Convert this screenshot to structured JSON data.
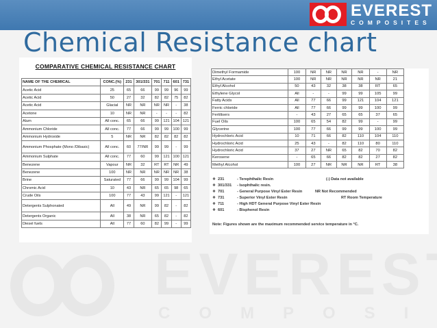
{
  "title": "Chemical Resistance chart",
  "brand": {
    "name": "EVEREST",
    "tagline": "COMPOSITES"
  },
  "left_table": {
    "title": "COMPARATIVE CHEMICAL RESISTANCE CHART",
    "headers": [
      "NAME OF THE CHEMICAL",
      "CONC.(%)",
      "231",
      "301/331",
      "701",
      "711",
      "601",
      "731"
    ],
    "rows": [
      [
        "Acetic Acid",
        "25",
        "65",
        "66",
        "99",
        "99",
        "96",
        "99"
      ],
      [
        "Acetic Acid",
        "50",
        "27",
        "32",
        "82",
        "82",
        "75",
        "82"
      ],
      [
        "Acetic Acid",
        "Glacial",
        "NR",
        "NR",
        "NR",
        "NR",
        "-",
        "38"
      ],
      [
        "Acetone",
        "10",
        "NR",
        "NR",
        "-",
        "-",
        "-",
        "82"
      ],
      [
        "Alum",
        "All conc.",
        "65",
        "66",
        "99",
        "121",
        "104",
        "121"
      ],
      [
        "Ammonium Chloride",
        "All conc.",
        "77",
        "66",
        "99",
        "99",
        "100",
        "99"
      ],
      [
        "Ammonium Hydroxide",
        "5",
        "NR",
        "NR",
        "82",
        "82",
        "82",
        "82"
      ],
      [
        "Ammonium Phosphate (Mono /Dibasic)",
        "All conc.",
        "60",
        "77/NR",
        "99",
        "99",
        "-",
        "99"
      ],
      [
        "Ammonium Sulphate",
        "All conc.",
        "77",
        "60",
        "99",
        "121",
        "100",
        "121"
      ],
      [
        "Benezene",
        "Vapour",
        "NR",
        "32",
        "RT",
        "RT",
        "NR",
        "49"
      ],
      [
        "Benezene",
        "100",
        "NR",
        "NR",
        "NR",
        "NR",
        "NR",
        "38"
      ],
      [
        "Brine",
        "Saturated",
        "77",
        "66",
        "99",
        "99",
        "104",
        "99"
      ],
      [
        "Chromic Acid",
        "10",
        "43",
        "NR",
        "65",
        "65",
        "98",
        "65"
      ],
      [
        "Crude Oils",
        "100",
        "77",
        "43",
        "99",
        "121",
        "-",
        "121"
      ],
      [
        "Detergents Sulphonated",
        "All",
        "49",
        "NR",
        "99",
        "82",
        "-",
        "82"
      ],
      [
        "Detergents Organic",
        "All",
        "38",
        "NR",
        "65",
        "82",
        "-",
        "82"
      ],
      [
        "Diesel fuels",
        "All",
        "77",
        "60",
        "82",
        "99",
        "-",
        "99"
      ]
    ]
  },
  "right_table": {
    "rows": [
      [
        "Dimethyl Formamide",
        "100",
        "NR",
        "NR",
        "NR",
        "NR",
        "-",
        "NR"
      ],
      [
        "Ethyl Acetate",
        "100",
        "NR",
        "NR",
        "NR",
        "NR",
        "NR",
        "21"
      ],
      [
        "Ethyl Alcohol",
        "50",
        "43",
        "32",
        "38",
        "38",
        "RT",
        "65"
      ],
      [
        "Ethylene Glycol",
        "All",
        "-",
        "-",
        "99",
        "99",
        "105",
        "99"
      ],
      [
        "Fatty Acids",
        "All",
        "77",
        "66",
        "99",
        "121",
        "104",
        "121"
      ],
      [
        "Ferric chloride",
        "All",
        "77",
        "66",
        "99",
        "99",
        "100",
        "99"
      ],
      [
        "Fertilisers",
        "-",
        "43",
        "27",
        "65",
        "65",
        "37",
        "65"
      ],
      [
        "Fuel Oils",
        "100",
        "65",
        "54",
        "82",
        "99",
        "-",
        "99"
      ],
      [
        "Glycerine",
        "100",
        "77",
        "66",
        "99",
        "99",
        "100",
        "99"
      ],
      [
        "Hydrochloric Acid",
        "10",
        "71",
        "66",
        "82",
        "110",
        "104",
        "110"
      ],
      [
        "Hydrochloric Acid",
        "25",
        "43",
        "-",
        "82",
        "110",
        "80",
        "110"
      ],
      [
        "Hydrochloric Acid",
        "37",
        "27",
        "NR",
        "65",
        "82",
        "70",
        "82"
      ],
      [
        "Kerosene",
        "-",
        "65",
        "66",
        "82",
        "82",
        "27",
        "82"
      ],
      [
        "Methyl Alcohol",
        "100",
        "27",
        "NR",
        "NR",
        "NR",
        "RT",
        "38"
      ]
    ]
  },
  "legend": [
    {
      "code": "231",
      "desc": "- Terephthalic Resin",
      "right": "(-)  Data not available"
    },
    {
      "code": "301/331",
      "desc": "- Isophthalic resin.",
      "right": ""
    },
    {
      "code": "701",
      "desc": "- General Purpose Vinyl Ester Resin",
      "right": "NR Not Recommended"
    },
    {
      "code": "731",
      "desc": "- Superior Vinyl Ester Resin",
      "right": "RT Room Temperature"
    },
    {
      "code": "711",
      "desc": "- High HDT General Purpose Vinyl Ester Resin",
      "right": ""
    },
    {
      "code": "601",
      "desc": "- Bisphenol Resin",
      "right": ""
    }
  ],
  "note": "Note: Figures shown are the maximum recommended service temperature in °C.",
  "colors": {
    "header_bar": "#4a82b8",
    "title_text": "#2f6a9e",
    "brand_red": "#e31e24"
  }
}
